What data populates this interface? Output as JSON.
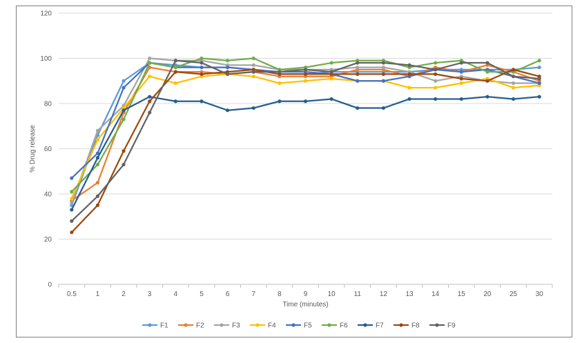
{
  "chart_data": {
    "type": "line",
    "title": "",
    "xlabel": "Time (minutes)",
    "ylabel": "% Drug release",
    "ylim": [
      0,
      120
    ],
    "yticks": [
      0,
      20,
      40,
      60,
      80,
      100,
      120
    ],
    "grid": "horizontal",
    "legend_position": "bottom",
    "categories": [
      "0.5",
      "1",
      "2",
      "3",
      "4",
      "5",
      "6",
      "7",
      "8",
      "9",
      "10",
      "11",
      "12",
      "13",
      "14",
      "15",
      "20",
      "25",
      "30"
    ],
    "series": [
      {
        "name": "F1",
        "color": "#5B9BD5",
        "values": [
          35,
          66,
          90,
          98,
          97,
          96,
          96,
          95,
          93,
          93,
          94,
          94,
          94,
          94,
          95,
          95,
          95,
          95,
          96
        ]
      },
      {
        "name": "F2",
        "color": "#ED7D31",
        "values": [
          37,
          45,
          76,
          96,
          94,
          94,
          93,
          94,
          92,
          92,
          92,
          95,
          95,
          92,
          96,
          94,
          97,
          94,
          90
        ]
      },
      {
        "name": "F3",
        "color": "#A5A5A5",
        "values": [
          36,
          68,
          79,
          100,
          99,
          99,
          97,
          97,
          95,
          95,
          95,
          96,
          96,
          94,
          90,
          92,
          90,
          89,
          89
        ]
      },
      {
        "name": "F4",
        "color": "#FFC000",
        "values": [
          38,
          64,
          78,
          92,
          89,
          92,
          93,
          92,
          89,
          90,
          91,
          90,
          90,
          87,
          87,
          89,
          91,
          87,
          88
        ]
      },
      {
        "name": "F5",
        "color": "#4472C4",
        "values": [
          47,
          58,
          87,
          98,
          96,
          96,
          96,
          95,
          94,
          94,
          93,
          90,
          90,
          92,
          95,
          94,
          95,
          92,
          89
        ]
      },
      {
        "name": "F6",
        "color": "#70AD47",
        "values": [
          41,
          53,
          73,
          98,
          96,
          100,
          99,
          100,
          95,
          96,
          98,
          99,
          99,
          96,
          98,
          99,
          94,
          94,
          99
        ]
      },
      {
        "name": "F7",
        "color": "#255E91",
        "values": [
          33,
          56,
          77,
          83,
          81,
          81,
          77,
          78,
          81,
          81,
          82,
          78,
          78,
          82,
          82,
          82,
          83,
          82,
          83
        ]
      },
      {
        "name": "F8",
        "color": "#9E480E",
        "values": [
          23,
          35,
          59,
          81,
          94,
          93,
          94,
          95,
          93,
          93,
          93,
          93,
          93,
          93,
          93,
          91,
          90,
          95,
          92
        ]
      },
      {
        "name": "F9",
        "color": "#636363",
        "values": [
          28,
          39,
          53,
          76,
          99,
          98,
          93,
          94,
          94,
          95,
          94,
          98,
          98,
          97,
          95,
          98,
          98,
          92,
          91
        ]
      }
    ]
  }
}
